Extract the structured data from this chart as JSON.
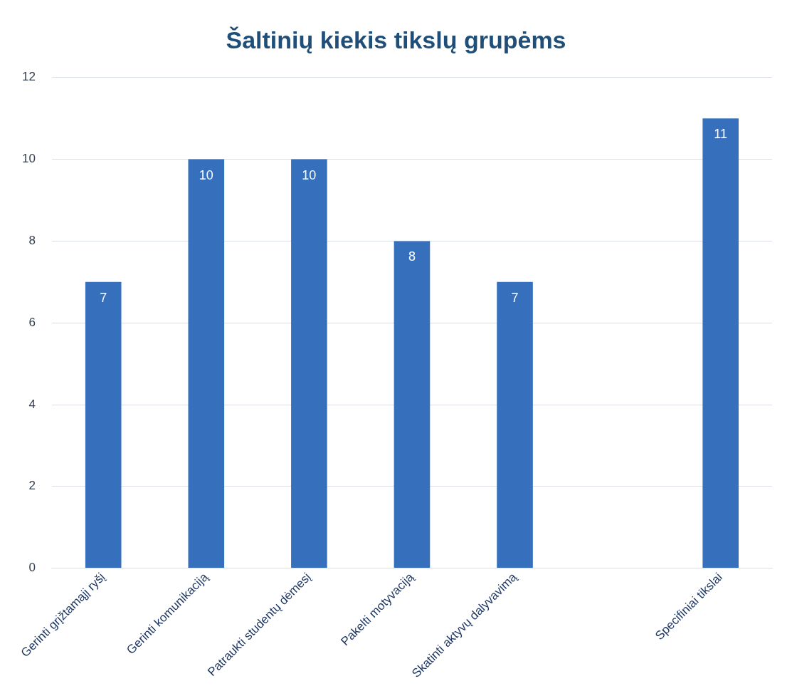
{
  "chart_data": {
    "type": "bar",
    "title": "Šaltinių kiekis tikslų grupėms",
    "categories": [
      "Gerinti grįžtamąjį ryšį",
      "Gerinti komunikaciją",
      "Patraukti studentų dėmesį",
      "Pakelti motyvaciją",
      "Skatinti aktyvų dalyvavimą",
      null,
      "Specifiniai tikslai"
    ],
    "values": [
      7,
      10,
      10,
      8,
      7,
      null,
      11
    ],
    "color": "#3670bd",
    "ylim": [
      0,
      12
    ],
    "yticks": [
      0,
      2,
      4,
      6,
      8,
      10,
      12
    ],
    "grid": "y",
    "data_labels": true,
    "legend": false
  }
}
